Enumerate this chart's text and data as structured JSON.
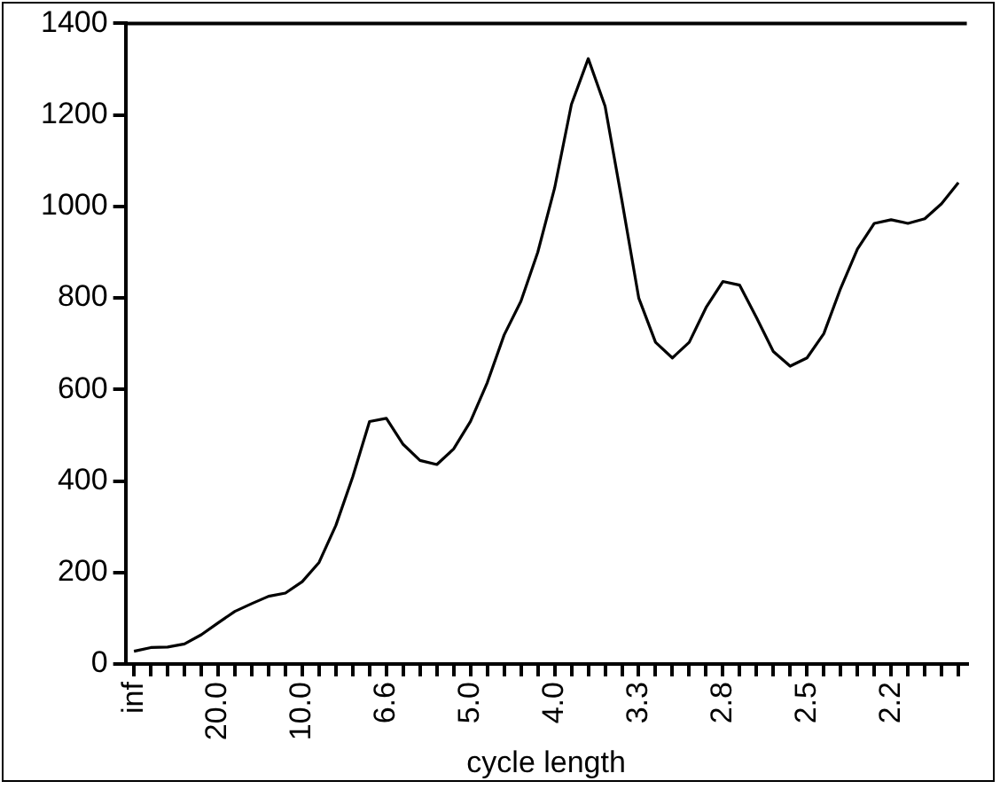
{
  "chart_data": {
    "type": "line",
    "xlabel": "cycle length",
    "categories": [
      "inf",
      null,
      null,
      null,
      null,
      "20.0",
      null,
      null,
      null,
      null,
      "10.0",
      null,
      null,
      null,
      null,
      "6.6",
      null,
      null,
      null,
      null,
      "5.0",
      null,
      null,
      null,
      null,
      "4.0",
      null,
      null,
      null,
      null,
      "3.3",
      null,
      null,
      null,
      null,
      "2.8",
      null,
      null,
      null,
      null,
      "2.5",
      null,
      null,
      null,
      null,
      "2.2",
      null,
      null,
      null,
      null
    ],
    "series": [
      {
        "color": "#000000",
        "values": [
          28,
          36,
          37,
          44,
          64,
          90,
          115,
          132,
          148,
          155,
          180,
          222,
          303,
          409,
          530,
          537,
          480,
          445,
          436,
          470,
          530,
          615,
          719,
          793,
          900,
          1040,
          1223,
          1323,
          1219,
          1013,
          800,
          703,
          669,
          703,
          779,
          836,
          828,
          757,
          683,
          651,
          669,
          722,
          821,
          907,
          963,
          971,
          963,
          973,
          1006,
          1052
        ]
      }
    ],
    "ylim": [
      0,
      1400
    ],
    "yticks": [
      0,
      200,
      400,
      600,
      800,
      1000,
      1200,
      1400
    ],
    "grid": false,
    "legend": false,
    "marker": "none",
    "line_style": "solid"
  }
}
